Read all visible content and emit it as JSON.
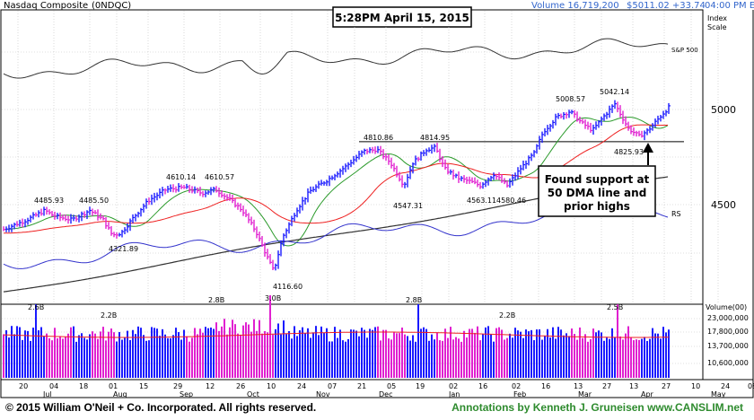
{
  "header": {
    "index_name": "Nasdaq Composite",
    "ticker": "(0NDQC)",
    "volume_text": "Volume 16,719,200",
    "price_text": "$5011.02 +33.74",
    "time_text": "04:00 PM ET",
    "timestamp_box": "5:28PM April 15, 2015",
    "index_scale_label": "Index\nScale"
  },
  "colors": {
    "price_up": "#1a1aff",
    "price_down": "#e020d0",
    "dma50": "#2a9a2a",
    "dma200": "#333333",
    "dma_red": "#ee2020",
    "rs_line": "#3333cc",
    "sp500": "#333333",
    "grid": "#c0c0c0",
    "frame": "#000000",
    "volume_avg": "#ee2020"
  },
  "chart_data": {
    "type": "ohlc",
    "title": "Nasdaq Composite (0NDQC)",
    "price_axis": {
      "ticks": [
        4500,
        5000
      ],
      "range": [
        4000,
        5200
      ]
    },
    "volume_axis": {
      "title": "Volume(00)",
      "ticks": [
        "23,000,000",
        "17,800,000",
        "13,700,000",
        "10,600,000"
      ]
    },
    "price_labels": [
      {
        "text": "4485.93",
        "value": 4485.93
      },
      {
        "text": "4485.50",
        "value": 4485.5
      },
      {
        "text": "4321.89",
        "value": 4321.89
      },
      {
        "text": "4610.14",
        "value": 4610.14
      },
      {
        "text": "4610.57",
        "value": 4610.57
      },
      {
        "text": "4116.60",
        "value": 4116.6
      },
      {
        "text": "4810.86",
        "value": 4810.86
      },
      {
        "text": "4814.95",
        "value": 4814.95
      },
      {
        "text": "4547.31",
        "value": 4547.31
      },
      {
        "text": "4563.11",
        "value": 4563.11
      },
      {
        "text": "4580.46",
        "value": 4580.46
      },
      {
        "text": "5008.57",
        "value": 5008.57
      },
      {
        "text": "5042.14",
        "value": 5042.14
      },
      {
        "text": "4825.93",
        "value": 4825.93
      }
    ],
    "volume_labels": [
      "2.6B",
      "2.2B",
      "2.8B",
      "3.0B",
      "2.8B",
      "2.2B",
      "2.5B"
    ],
    "line_labels": {
      "sp500": "S&P 500",
      "rs": "RS"
    },
    "x_month_labels": [
      "Jul",
      "Aug",
      "Sep",
      "Oct",
      "Nov",
      "Dec",
      "Jan",
      "Feb",
      "Mar",
      "Apr",
      "May"
    ],
    "x_day_labels": [
      "20",
      "04",
      "18",
      "01",
      "15",
      "29",
      "12",
      "26",
      "10",
      "24",
      "07",
      "21",
      "05",
      "19",
      "02",
      "16",
      "02",
      "16",
      "13",
      "27",
      "13",
      "27",
      "10",
      "24",
      "08"
    ],
    "support_value": 4825.93,
    "annotation": "Found support at\n50 DMA line and\nprior highs"
  },
  "footer": {
    "copyright": "© 2015 William O'Neil + Co. Incorporated. All rights reserved.",
    "annotations": "Annotations by Kenneth J. Gruneisen www.CANSLIM.net"
  }
}
